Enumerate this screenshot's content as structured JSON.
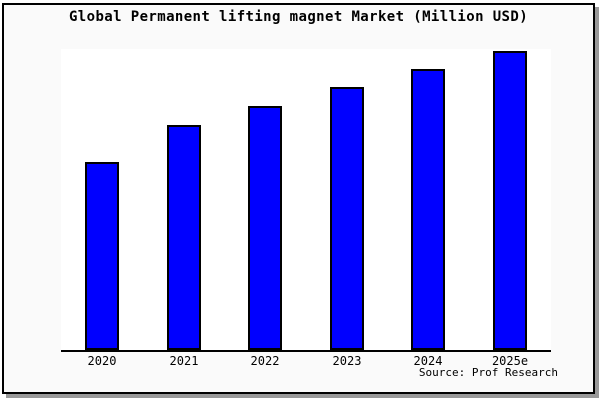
{
  "title": "Global Permanent lifting magnet Market (Million USD)",
  "source": "Source: Prof Research",
  "colors": {
    "canvas_background": "#fafafa",
    "plot_background": "#ffffff",
    "bar_fill": "#0000ff",
    "bar_border": "#000000",
    "frame_border": "#000000",
    "frame_shadow": "#999999",
    "text": "#000000"
  },
  "chart_data": {
    "type": "bar",
    "title": "Global Permanent lifting magnet Market (Million USD)",
    "categories": [
      "2020",
      "2021",
      "2022",
      "2023",
      "2024",
      "2025e"
    ],
    "values": [
      62.9,
      75.3,
      81.6,
      88.0,
      94.0,
      100.0
    ],
    "values_note": "relative index estimated from bar heights; no y-axis tick labels shown (2025e = 100)",
    "xlabel": "",
    "ylabel": "",
    "ylim": [
      0,
      100.7
    ],
    "grid": false,
    "legend": null,
    "annotation": "Source: Prof Research"
  }
}
